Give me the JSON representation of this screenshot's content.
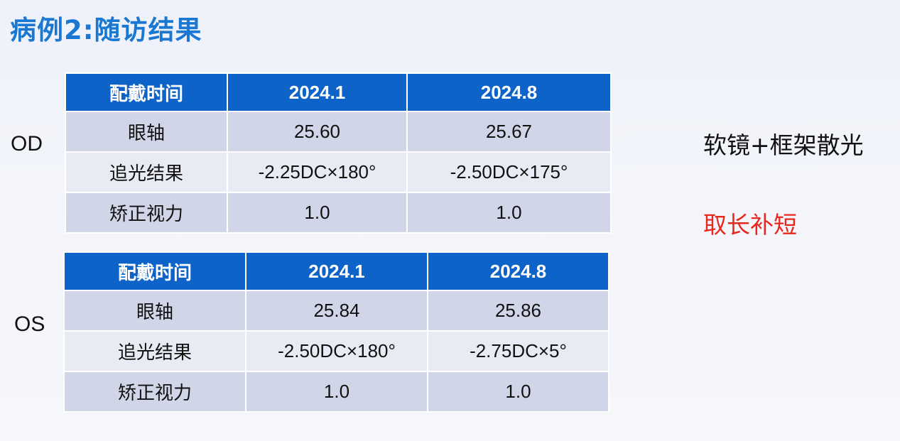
{
  "title": "病例2:随访结果",
  "od": {
    "label": "OD",
    "headers": [
      "配戴时间",
      "2024.1",
      "2024.8"
    ],
    "rows": [
      [
        "眼轴",
        "25.60",
        "25.67"
      ],
      [
        "追光结果",
        "-2.25DC×180°",
        "-2.50DC×175°"
      ],
      [
        "矫正视力",
        "1.0",
        "1.0"
      ]
    ]
  },
  "os": {
    "label": "OS",
    "headers": [
      "配戴时间",
      "2024.1",
      "2024.8"
    ],
    "rows": [
      [
        "眼轴",
        "25.84",
        "25.86"
      ],
      [
        "追光结果",
        "-2.50DC×180°",
        "-2.75DC×5°"
      ],
      [
        "矫正视力",
        "1.0",
        "1.0"
      ]
    ]
  },
  "notes": {
    "treatment": "软镜+框架散光",
    "principle": "取长补短"
  },
  "colors": {
    "title": "#1a78d2",
    "header_bg": "#0d63c8",
    "row_dark": "#d1d5e8",
    "row_light": "#e9ebf4",
    "principle_text": "#e8281e"
  }
}
